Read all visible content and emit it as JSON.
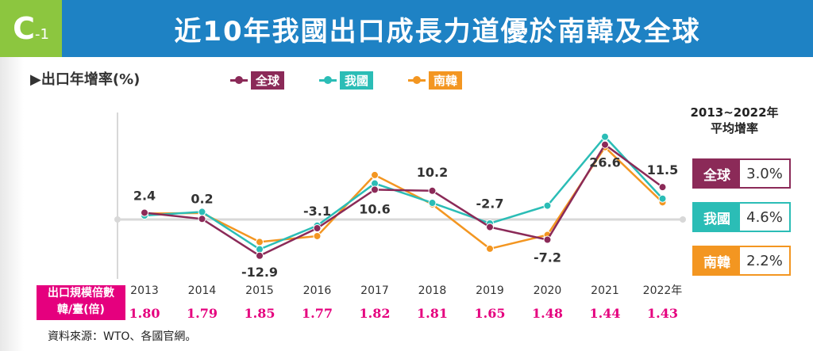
{
  "header": {
    "badge_letter": "C",
    "badge_num": "-1",
    "title": "近10年我國出口成長力道優於南韓及全球"
  },
  "unit_label": "▶出口年增率(%)",
  "avg_title": [
    "2013~2022年",
    "平均增率"
  ],
  "ratio_label": [
    "出口規模倍數",
    "韓/臺(倍)"
  ],
  "source": "資料來源：WTO、各國官網。",
  "colors": {
    "global": "#8b2a58",
    "taiwan": "#2bbdb6",
    "korea": "#f39621",
    "magenta": "#e5007e"
  },
  "legend": [
    {
      "label": "全球",
      "color": "#8b2a58"
    },
    {
      "label": "我國",
      "color": "#2bbdb6"
    },
    {
      "label": "南韓",
      "color": "#f39621"
    }
  ],
  "averages": [
    {
      "label": "全球",
      "value": "3.0%",
      "color": "#8b2a58"
    },
    {
      "label": "我國",
      "value": "4.6%",
      "color": "#2bbdb6"
    },
    {
      "label": "南韓",
      "value": "2.2%",
      "color": "#f39621"
    }
  ],
  "chart_data": {
    "type": "line",
    "x": [
      "2013",
      "2014",
      "2015",
      "2016",
      "2017",
      "2018",
      "2019",
      "2020",
      "2021",
      "2022年"
    ],
    "ylabel": "出口年增率(%)",
    "series": [
      {
        "name": "全球",
        "values": [
          2.4,
          0.2,
          -12.9,
          -3.1,
          10.6,
          10.2,
          -2.7,
          -7.2,
          26.6,
          11.5
        ]
      },
      {
        "name": "我國",
        "values": [
          1.4,
          2.7,
          -10.6,
          -2.2,
          12.8,
          5.9,
          -1.4,
          4.9,
          29.4,
          7.4
        ]
      },
      {
        "name": "南韓",
        "values": [
          2.1,
          2.3,
          -8.0,
          -5.9,
          15.8,
          5.4,
          -10.4,
          -5.5,
          25.7,
          6.1
        ]
      }
    ],
    "data_labels": [
      "2.4",
      "0.2",
      "-12.9",
      "-3.1",
      "10.6",
      "10.2",
      "-2.7",
      "-7.2",
      "26.6",
      "11.5"
    ],
    "ratio_values": [
      "1.80",
      "1.79",
      "1.85",
      "1.77",
      "1.82",
      "1.81",
      "1.65",
      "1.48",
      "1.44",
      "1.43"
    ],
    "ylim": [
      -15,
      30
    ],
    "grid": false
  }
}
